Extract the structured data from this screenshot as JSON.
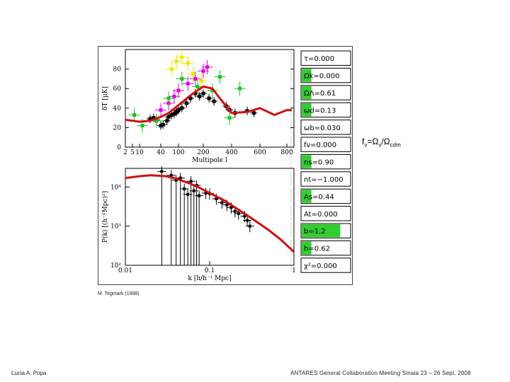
{
  "annotation": {
    "f": "f",
    "nu1": "ν",
    "eq": "=Ω",
    "nu2": "ν",
    "slash": "/Ω",
    "cdm": "cdm"
  },
  "credit": "M. Tegmark (1998)",
  "footer": {
    "author": "Lucia A.  Popa",
    "event": "ANTARES General Collaboration Meeting   Sinaia 23 – 26 Sept. 2008"
  },
  "params": [
    {
      "label": "τ=0.000",
      "green": 0
    },
    {
      "label": "Ωk=0.000",
      "green": 20
    },
    {
      "label": "ΩΛ=0.61",
      "green": 20
    },
    {
      "label": "ωd=0.13",
      "green": 20
    },
    {
      "label": "ωb=0.030",
      "green": 0
    },
    {
      "label": "fν=0.000",
      "green": 0
    },
    {
      "label": "ns=0.90",
      "green": 20
    },
    {
      "label": "nt=−1.000",
      "green": 0
    },
    {
      "label": "As=0.44",
      "green": 20
    },
    {
      "label": "At=0.000",
      "green": 0
    },
    {
      "label": "b=1.2",
      "green": 80
    },
    {
      "label": "h=0.62",
      "green": 20
    },
    {
      "label": "χ²=0.000",
      "green": 0
    }
  ],
  "chart_data": [
    {
      "type": "scatter",
      "xlabel": "Multipole l",
      "ylabel": "δT [μK]",
      "x_ticks": [
        "2",
        "5",
        "10",
        "40",
        "100",
        "200",
        "400",
        "600",
        "800"
      ],
      "y_ticks": [
        0,
        20,
        40,
        60,
        80
      ],
      "ylim": [
        0,
        100
      ],
      "theory_curve": {
        "x": [
          2,
          5,
          10,
          20,
          40,
          60,
          100,
          150,
          200,
          250,
          300,
          400,
          500,
          600,
          700,
          800,
          900
        ],
        "y": [
          28,
          27,
          26,
          27,
          31,
          35,
          43,
          55,
          62,
          60,
          50,
          35,
          36,
          40,
          33,
          38,
          38
        ]
      },
      "series": [
        {
          "name": "black",
          "color": "#000000",
          "points": [
            [
              20,
              29
            ],
            [
              25,
              30
            ],
            [
              30,
              28
            ],
            [
              40,
              22
            ],
            [
              45,
              23
            ],
            [
              55,
              27
            ],
            [
              60,
              31
            ],
            [
              70,
              33
            ],
            [
              80,
              34
            ],
            [
              90,
              36
            ],
            [
              100,
              38
            ],
            [
              110,
              40
            ],
            [
              125,
              45
            ],
            [
              140,
              50
            ],
            [
              160,
              55
            ],
            [
              180,
              52
            ],
            [
              200,
              55
            ],
            [
              230,
              50
            ],
            [
              260,
              47
            ],
            [
              350,
              42
            ],
            [
              380,
              38
            ],
            [
              420,
              35
            ],
            [
              500,
              37
            ],
            [
              550,
              35
            ]
          ]
        },
        {
          "name": "magenta",
          "color": "#e000e0",
          "points": [
            [
              40,
              38
            ],
            [
              60,
              45
            ],
            [
              80,
              52
            ],
            [
              100,
              58
            ],
            [
              130,
              65
            ],
            [
              160,
              70
            ],
            [
              200,
              78
            ],
            [
              220,
              82
            ]
          ]
        },
        {
          "name": "yellow",
          "color": "#e8e800",
          "points": [
            [
              70,
              80
            ],
            [
              90,
              88
            ],
            [
              110,
              92
            ],
            [
              130,
              86
            ],
            [
              150,
              75
            ],
            [
              190,
              68
            ]
          ]
        },
        {
          "name": "green",
          "color": "#20c020",
          "points": [
            [
              6,
              33
            ],
            [
              12,
              22
            ],
            [
              30,
              27
            ],
            [
              60,
              50
            ],
            [
              110,
              70
            ],
            [
              170,
              62
            ],
            [
              250,
              58
            ],
            [
              300,
              72
            ],
            [
              380,
              30
            ],
            [
              450,
              60
            ]
          ]
        }
      ]
    },
    {
      "type": "scatter",
      "xlabel": "k [h/h⁻¹ Mpc]",
      "ylabel": "P(k) [(h⁻¹Mpc)³]",
      "x_ticks": [
        "0.01",
        "0.1",
        "1"
      ],
      "y_ticks": [
        "10⁴",
        "10³",
        "10²"
      ],
      "ylim": [
        100,
        30000
      ],
      "theory_curve": {
        "x": [
          0.01,
          0.015,
          0.02,
          0.03,
          0.04,
          0.06,
          0.08,
          0.1,
          0.15,
          0.2,
          0.3,
          0.5,
          0.7,
          1.0
        ],
        "y": [
          17000,
          19000,
          20000,
          19000,
          16500,
          12000,
          9000,
          7000,
          4500,
          3000,
          1700,
          800,
          450,
          220
        ]
      },
      "points": [
        [
          0.027,
          25000
        ],
        [
          0.035,
          20000
        ],
        [
          0.04,
          15000
        ],
        [
          0.045,
          17000
        ],
        [
          0.05,
          9000
        ],
        [
          0.055,
          6500
        ],
        [
          0.06,
          14000
        ],
        [
          0.065,
          8000
        ],
        [
          0.07,
          11000
        ],
        [
          0.075,
          6000
        ],
        [
          0.09,
          7000
        ],
        [
          0.1,
          6800
        ],
        [
          0.12,
          5000
        ],
        [
          0.14,
          4000
        ],
        [
          0.16,
          3500
        ],
        [
          0.18,
          3000
        ],
        [
          0.2,
          2400
        ],
        [
          0.22,
          2100
        ],
        [
          0.26,
          1800
        ],
        [
          0.28,
          1400
        ],
        [
          0.3,
          1000
        ]
      ]
    }
  ]
}
